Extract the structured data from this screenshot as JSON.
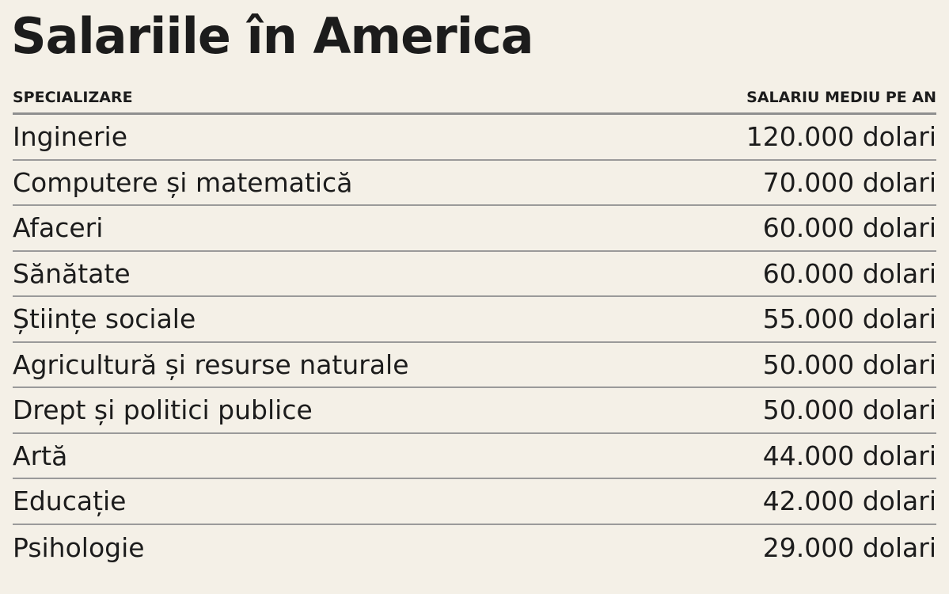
{
  "title": "Salariile în America",
  "table": {
    "header": [
      "SPECIALIZARE",
      "SALARIU MEDIU PE AN"
    ],
    "rows": [
      [
        "Inginerie",
        "120.000 dolari"
      ],
      [
        "Computere și matematică",
        "70.000 dolari"
      ],
      [
        "Afaceri",
        "60.000 dolari"
      ],
      [
        "Sănătate",
        "60.000 dolari"
      ],
      [
        "Științe sociale",
        "55.000 dolari"
      ],
      [
        "Agricultură și resurse naturale",
        "50.000 dolari"
      ],
      [
        "Drept și politici publice",
        "50.000 dolari"
      ],
      [
        "Artă",
        "44.000 dolari"
      ],
      [
        "Educație",
        "42.000 dolari"
      ],
      [
        "Psihologie",
        "29.000 dolari"
      ]
    ]
  }
}
